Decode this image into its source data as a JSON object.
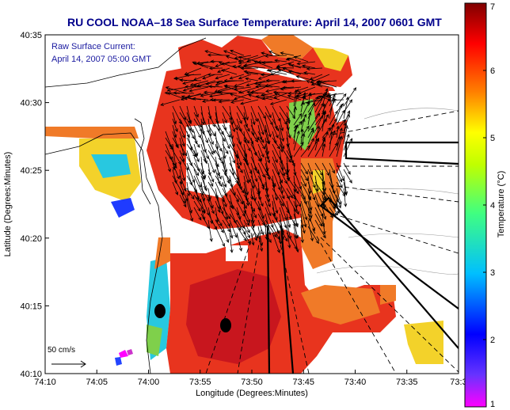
{
  "title": "RU COOL  NOAA–18  Sea Surface Temperature:  April 14, 2007 0601 GMT",
  "legend": {
    "line1": "Raw Surface Current:",
    "line2": "April 14, 2007 05:00 GMT"
  },
  "scale_label": "50 cm/s",
  "colors": {
    "land": "#ffffff",
    "sst_warm": "#e8341e",
    "sst_hot": "#c8161e",
    "sst_orange": "#f07a28",
    "sst_yellow": "#f3d22a",
    "sst_green": "#7fd04b",
    "sst_cyan": "#28c8e0",
    "sst_blue": "#1f3bff",
    "arrow": "#000000",
    "title": "#00008b"
  },
  "chart_data": {
    "type": "heatmap",
    "title": "RU COOL  NOAA–18  Sea Surface Temperature:  April 14, 2007 0601 GMT",
    "xlabel": "Longitude (Degrees:Minutes)",
    "ylabel": "Latitude (Degrees:Minutes)",
    "x_ticks": [
      "74:10",
      "74:05",
      "74:00",
      "73:55",
      "73:50",
      "73:45",
      "73:40",
      "73:35",
      "73:3"
    ],
    "y_ticks": [
      "40:35",
      "40:30",
      "40:25",
      "40:20",
      "40:15",
      "40:10"
    ],
    "colorbar": {
      "label": "Temperature (°C)",
      "range": [
        1,
        7
      ],
      "ticks": [
        "7",
        "6",
        "5",
        "4",
        "3",
        "2",
        "1"
      ]
    }
  }
}
